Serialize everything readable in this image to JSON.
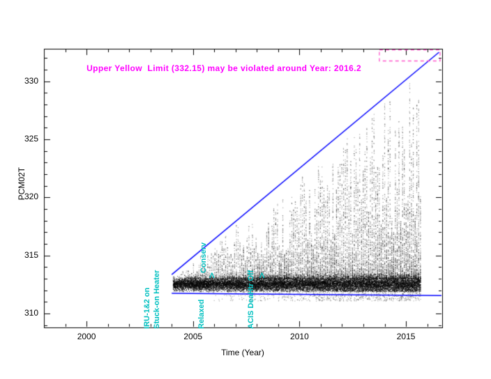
{
  "page": {
    "background_color": "#ffffff"
  },
  "chart_data": {
    "type": "scatter",
    "title": "",
    "xlabel": "Time (Year)",
    "ylabel": "PCM02T",
    "xlim": [
      1998.0,
      2016.7
    ],
    "ylim": [
      308.8,
      332.8
    ],
    "x_major_ticks": [
      2000,
      2005,
      2010,
      2015
    ],
    "x_minor_step": 1,
    "y_major_ticks": [
      310,
      315,
      320,
      325,
      330
    ],
    "y_minor_step": 1,
    "grid": false,
    "point_color": "#000000",
    "axis_color": "#000000",
    "upper_yellow_limit": 332.15,
    "predicted_violation_year": 2016.2,
    "annotation": {
      "text": "Upper Yellow  Limit (332.15) may be violated around Year: 2016.2",
      "color": "#ff00ff",
      "x": 2000.0,
      "y": 331.1
    },
    "limit_box": {
      "x1": 2013.75,
      "x2": 2016.6,
      "y1": 331.75,
      "y2": 332.7,
      "color": "#ff55cc",
      "style": "dashed"
    },
    "trend_lines": [
      {
        "name": "upper-envelope-fit",
        "color": "#0000ff",
        "points": [
          [
            2004.0,
            313.35
          ],
          [
            2016.55,
            332.5
          ]
        ]
      },
      {
        "name": "lower-envelope-fit",
        "color": "#0000ff",
        "points": [
          [
            2004.0,
            311.74
          ],
          [
            2016.7,
            311.55
          ]
        ]
      }
    ],
    "events": [
      {
        "label": "IRU-1&2 on",
        "year": 2003.32,
        "color": "#00c0c0",
        "anchor_value": null
      },
      {
        "label": "Stuck-on Heater",
        "year": 2003.78,
        "color": "#00c0c0",
        "anchor_value": null
      },
      {
        "label": "Conserv",
        "year": 2005.97,
        "color": "#00c0c0",
        "anchor_value": 313.5
      },
      {
        "label": "Relaxed",
        "year": 2005.86,
        "color": "#00c0c0",
        "anchor_value": null
      },
      {
        "label": "ACIS DeaHtr Off",
        "year": 2008.2,
        "color": "#00c0c0",
        "anchor_value": null
      }
    ],
    "event_markers": [
      {
        "glyph": "Λ",
        "year": 2005.93,
        "value": 313.0,
        "color": "#00c0c0"
      },
      {
        "glyph": "Λ",
        "year": 2008.28,
        "value": 313.0,
        "color": "#00c0c0"
      }
    ],
    "scatter_summary": {
      "description": "Dense telemetry band near 312.5 from 2004 through late 2015, with vertical excursion streaks fanning upward toward the rising blue upper-envelope fit line (reaching ~331 by 2015.7); sparse points below the band down to ~311.1 mostly after 2006. No data before 2004.",
      "core_band": {
        "x_range": [
          2004.05,
          2015.68
        ],
        "y_center": 312.55,
        "y_sigma": 0.27,
        "points": 14000
      },
      "upper_fan": {
        "x_range": [
          2004.3,
          2015.68
        ],
        "y_from": 313.0,
        "points": 12000
      },
      "lower_tail": {
        "x_range": [
          2005.5,
          2015.68
        ],
        "y_range": [
          311.1,
          312.0
        ],
        "points": 800
      }
    }
  }
}
